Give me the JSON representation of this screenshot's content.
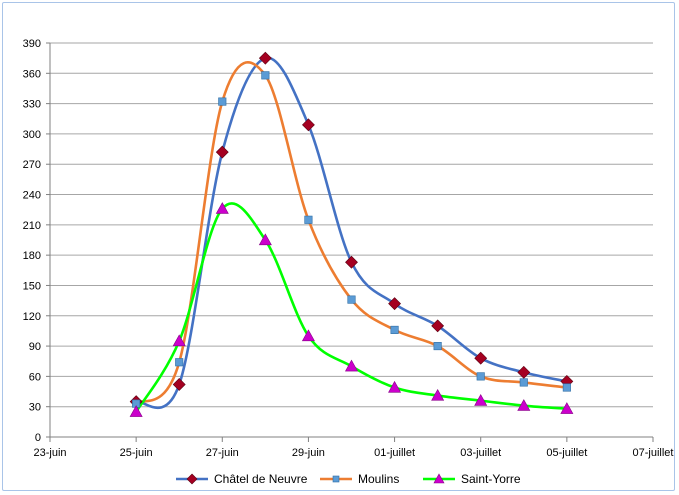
{
  "chart_data": {
    "type": "line",
    "x": [
      "25-juin",
      "26-juin",
      "27-juin",
      "28-juin",
      "29-juin",
      "30-juin",
      "01-juillet",
      "02-juillet",
      "03-juillet",
      "04-juillet",
      "05-juillet"
    ],
    "x_ticks": [
      "23-juin",
      "25-juin",
      "27-juin",
      "29-juin",
      "01-juillet",
      "03-juillet",
      "05-juillet",
      "07-juillet"
    ],
    "y_ticks": [
      0,
      30,
      60,
      90,
      120,
      150,
      180,
      210,
      240,
      270,
      300,
      330,
      360,
      390
    ],
    "ylim": [
      0,
      390
    ],
    "grid": "horizontal",
    "legend_position": "bottom",
    "series": [
      {
        "name": "Châtel de Neuvre",
        "color": "#4472c4",
        "marker": "diamond",
        "marker_color": "#a50021",
        "values": [
          35,
          52,
          282,
          375,
          309,
          173,
          132,
          110,
          78,
          64,
          55
        ]
      },
      {
        "name": "Moulins",
        "color": "#ed7d31",
        "marker": "square",
        "marker_color": "#5b9bd5",
        "values": [
          33,
          74,
          332,
          358,
          215,
          136,
          106,
          90,
          60,
          54,
          49
        ]
      },
      {
        "name": "Saint-Yorre",
        "color": "#00ff00",
        "marker": "triangle",
        "marker_color": "#cc00cc",
        "values": [
          25,
          95,
          226,
          195,
          100,
          70,
          49,
          41,
          36,
          31,
          28
        ]
      }
    ]
  }
}
